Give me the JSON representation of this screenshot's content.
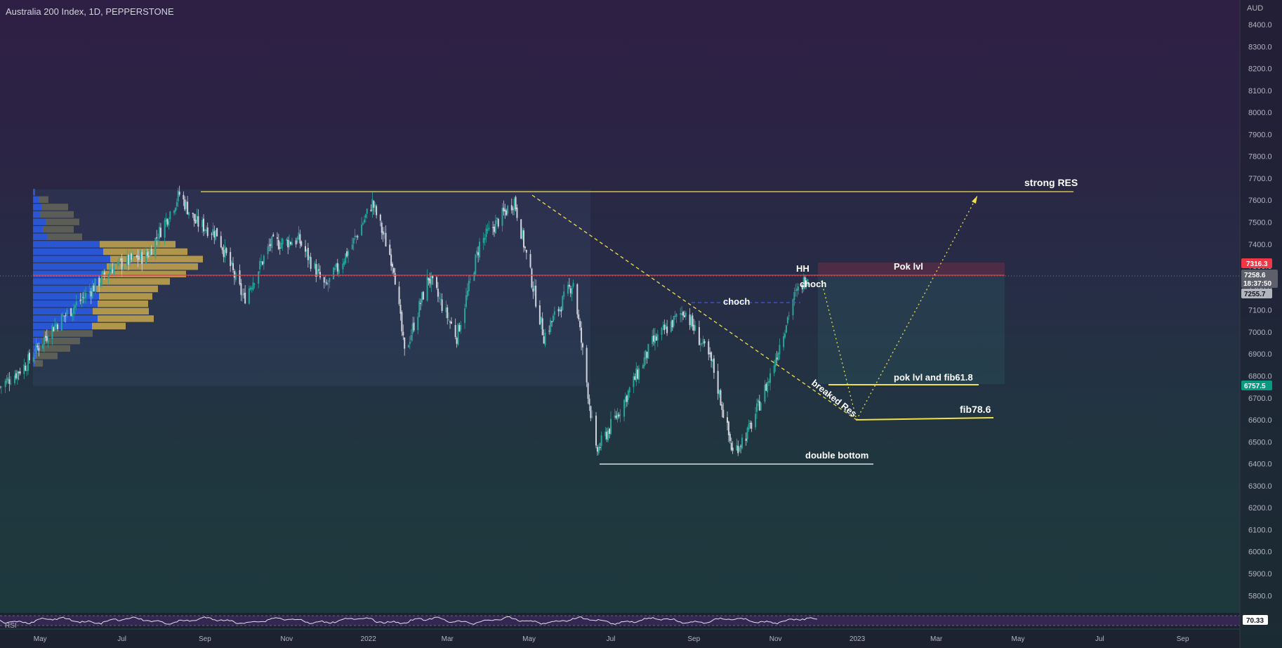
{
  "header": {
    "title": "Australia 200 Index, 1D, PEPPERSTONE"
  },
  "price_axis": {
    "currency": "AUD"
  },
  "rsi": {
    "label": "RSI",
    "value": "70.33"
  },
  "price_tags": {
    "red": "7316.3",
    "current": "7258.6",
    "countdown": "18:37:50",
    "grey": "7255.7",
    "green": "6757.5"
  },
  "annotations": {
    "strong_res": "strong RES",
    "pok_lvl": "Pok lvl",
    "hh": "HH",
    "choch_1": "choch",
    "choch_2": "choch",
    "pok_fib": "pok lvl and fib61.8",
    "fib786": "fib78.6",
    "breaked_res": "breaked Res",
    "double_bottom": "double bottom"
  },
  "colors": {
    "up": "#26a69a",
    "down": "#d1d4dc",
    "resistance": "#f0e14a",
    "red_line": "#f23645",
    "vp_blue": "#2962ff",
    "vp_gold": "#c8a84b"
  },
  "chart_data": {
    "type": "candlestick",
    "title": "Australia 200 Index, 1D, PEPPERSTONE",
    "y_axis": {
      "ticks": [
        "8400.0",
        "8300.0",
        "8200.0",
        "8100.0",
        "8000.0",
        "7900.0",
        "7800.0",
        "7700.0",
        "7600.0",
        "7500.0",
        "7400.0",
        "7300.0",
        "7200.0",
        "7100.0",
        "7000.0",
        "6900.0",
        "6800.0",
        "6700.0",
        "6600.0",
        "6500.0",
        "6400.0",
        "6300.0",
        "6200.0",
        "6100.0",
        "6000.0",
        "5900.0",
        "5800.0"
      ],
      "range": [
        5760,
        8480
      ]
    },
    "x_axis": {
      "ticks": [
        "May",
        "Jul",
        "Sep",
        "Nov",
        "2022",
        "Mar",
        "May",
        "Jul",
        "Sep",
        "Nov",
        "2023",
        "Mar",
        "May",
        "Jul",
        "Sep"
      ]
    },
    "price_path": [
      {
        "x": "2021-04-01",
        "y": 6750
      },
      {
        "x": "2021-04-20",
        "y": 6850
      },
      {
        "x": "2021-05-10",
        "y": 7020
      },
      {
        "x": "2021-06-01",
        "y": 7150
      },
      {
        "x": "2021-06-25",
        "y": 7300
      },
      {
        "x": "2021-07-20",
        "y": 7350
      },
      {
        "x": "2021-08-13",
        "y": 7628
      },
      {
        "x": "2021-08-25",
        "y": 7500
      },
      {
        "x": "2021-09-10",
        "y": 7450
      },
      {
        "x": "2021-09-30",
        "y": 7150
      },
      {
        "x": "2021-10-20",
        "y": 7400
      },
      {
        "x": "2021-11-10",
        "y": 7420
      },
      {
        "x": "2021-11-30",
        "y": 7200
      },
      {
        "x": "2021-12-20",
        "y": 7400
      },
      {
        "x": "2022-01-04",
        "y": 7589
      },
      {
        "x": "2022-01-20",
        "y": 7300
      },
      {
        "x": "2022-01-28",
        "y": 6900
      },
      {
        "x": "2022-02-15",
        "y": 7250
      },
      {
        "x": "2022-03-08",
        "y": 6980
      },
      {
        "x": "2022-03-25",
        "y": 7400
      },
      {
        "x": "2022-04-20",
        "y": 7600
      },
      {
        "x": "2022-05-12",
        "y": 6980
      },
      {
        "x": "2022-06-03",
        "y": 7230
      },
      {
        "x": "2022-06-20",
        "y": 6450
      },
      {
        "x": "2022-07-08",
        "y": 6650
      },
      {
        "x": "2022-08-01",
        "y": 6950
      },
      {
        "x": "2022-08-25",
        "y": 7100
      },
      {
        "x": "2022-09-15",
        "y": 6850
      },
      {
        "x": "2022-09-30",
        "y": 6450
      },
      {
        "x": "2022-10-12",
        "y": 6550
      },
      {
        "x": "2022-10-28",
        "y": 6800
      },
      {
        "x": "2022-11-14",
        "y": 7150
      },
      {
        "x": "2022-11-25",
        "y": 7258
      }
    ],
    "horizontal_levels": [
      {
        "label": "strong RES",
        "y": 7633
      },
      {
        "label": "Pok lvl",
        "y": 7316
      },
      {
        "label": "pok lvl and fib61.8",
        "y": 6757
      },
      {
        "label": "fib78.6",
        "y": 6615
      },
      {
        "label": "double bottom",
        "y": 6405
      }
    ],
    "projection": [
      {
        "x": "2022-11-25",
        "y": 7258
      },
      {
        "x": "2022-12-25",
        "y": 6600
      },
      {
        "x": "2023-03-25",
        "y": 7620
      }
    ]
  }
}
